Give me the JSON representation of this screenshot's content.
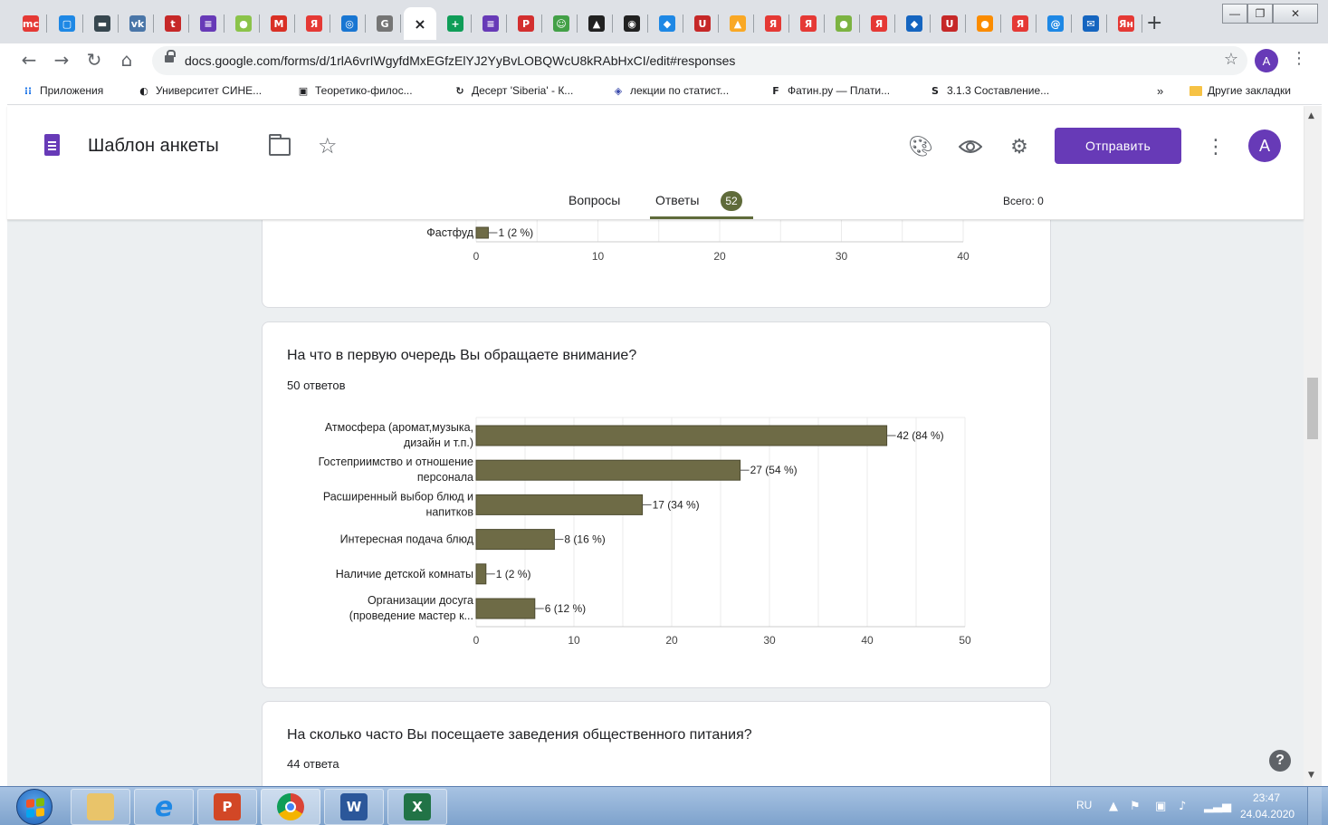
{
  "browser": {
    "tabs": [
      {
        "fav": "mc",
        "color": "#e53935"
      },
      {
        "fav": "▢",
        "color": "#1e88e5"
      },
      {
        "fav": "▬",
        "color": "#37474f"
      },
      {
        "fav": "vk",
        "color": "#4a76a8"
      },
      {
        "fav": "t",
        "color": "#c62828"
      },
      {
        "fav": "≡",
        "color": "#673ab7"
      },
      {
        "fav": "●",
        "color": "#8bc34a"
      },
      {
        "fav": "M",
        "color": "#d93025"
      },
      {
        "fav": "Я",
        "color": "#e53935"
      },
      {
        "fav": "◎",
        "color": "#1976d2"
      },
      {
        "fav": "G",
        "color": "#757575"
      },
      {
        "fav": "×",
        "color": "#ffffff",
        "active": true
      },
      {
        "fav": "+",
        "color": "#0f9d58"
      },
      {
        "fav": "≡",
        "color": "#673ab7"
      },
      {
        "fav": "P",
        "color": "#d32f2f"
      },
      {
        "fav": "☺",
        "color": "#43a047"
      },
      {
        "fav": "▲",
        "color": "#212121"
      },
      {
        "fav": "◉",
        "color": "#212121"
      },
      {
        "fav": "◆",
        "color": "#1e88e5"
      },
      {
        "fav": "U",
        "color": "#c62828"
      },
      {
        "fav": "▲",
        "color": "#f9a825"
      },
      {
        "fav": "Я",
        "color": "#e53935"
      },
      {
        "fav": "Я",
        "color": "#e53935"
      },
      {
        "fav": "●",
        "color": "#7cb342"
      },
      {
        "fav": "Я",
        "color": "#e53935"
      },
      {
        "fav": "◆",
        "color": "#1565c0"
      },
      {
        "fav": "U",
        "color": "#c62828"
      },
      {
        "fav": "●",
        "color": "#fb8c00"
      },
      {
        "fav": "Я",
        "color": "#e53935"
      },
      {
        "fav": "@",
        "color": "#1e88e5"
      },
      {
        "fav": "✉",
        "color": "#1565c0"
      },
      {
        "fav": "Ян",
        "color": "#e53935"
      }
    ],
    "new_tab": "+",
    "url": "docs.google.com/forms/d/1rlA6vrIWgyfdMxEGfzElYJ2YyBvLOBQWcU8kRAbHxCI/edit#responses",
    "profile_initial": "A",
    "bookmarks": [
      {
        "label": "Приложения",
        "icon": "⁝⁝",
        "color": "#1a73e8"
      },
      {
        "label": "Университет СИНЕ...",
        "icon": "◐",
        "color": "#202124"
      },
      {
        "label": "Теоретико-филос...",
        "icon": "▣",
        "color": "#202124"
      },
      {
        "label": "Десерт 'Siberia' - К...",
        "icon": "↻",
        "color": "#202124"
      },
      {
        "label": "лекции по статист...",
        "icon": "◈",
        "color": "#3949ab"
      },
      {
        "label": "Фатин.ру — Плати...",
        "icon": "F",
        "color": "#202124"
      },
      {
        "label": "3.1.3 Составление...",
        "icon": "S",
        "color": "#202124"
      }
    ],
    "more_bookmarks": "»",
    "other_bookmarks": "Другие закладки"
  },
  "form": {
    "title": "Шаблон анкеты",
    "send_label": "Отправить",
    "avatar_initial": "A",
    "tabs": {
      "questions": "Вопросы",
      "responses": "Ответы",
      "responses_count": "52"
    },
    "total_label": "Всего: 0"
  },
  "cards": {
    "top": {
      "chart_data": {
        "type": "bar",
        "orientation": "horizontal",
        "categories": [
          "Фастфуд"
        ],
        "values": [
          1
        ],
        "value_labels": [
          "1 (2 %)"
        ],
        "xticks": [
          0,
          10,
          20,
          30,
          40
        ],
        "xlim": [
          0,
          40
        ],
        "grid": true,
        "color": "#6e6b46"
      }
    },
    "attention": {
      "title": "На что в первую очередь Вы обращаете внимание?",
      "count": "50 ответов",
      "chart_data": {
        "type": "bar",
        "orientation": "horizontal",
        "categories": [
          [
            "Атмосфера (аромат,музыка,",
            "дизайн и т.п.)"
          ],
          [
            "Гостеприимство и отношение",
            "персонала"
          ],
          [
            "Расширенный выбор блюд и",
            "напитков"
          ],
          [
            "Интересная подача блюд"
          ],
          [
            "Наличие детской комнаты"
          ],
          [
            "Организации досуга",
            "(проведение мастер к..."
          ]
        ],
        "values": [
          42,
          27,
          17,
          8,
          1,
          6
        ],
        "value_labels": [
          "42 (84 %)",
          "27 (54 %)",
          "17 (34 %)",
          "8 (16 %)",
          "1 (2 %)",
          "6 (12 %)"
        ],
        "xticks": [
          0,
          10,
          20,
          30,
          40,
          50
        ],
        "xlim": [
          0,
          50
        ],
        "grid": true,
        "color": "#6e6b46"
      }
    },
    "frequency": {
      "title": "На сколько часто Вы посещаете заведения общественного питания?",
      "count": "44 ответа"
    }
  },
  "help": "?",
  "taskbar": {
    "lang": "RU",
    "time": "23:47",
    "date": "24.04.2020"
  }
}
